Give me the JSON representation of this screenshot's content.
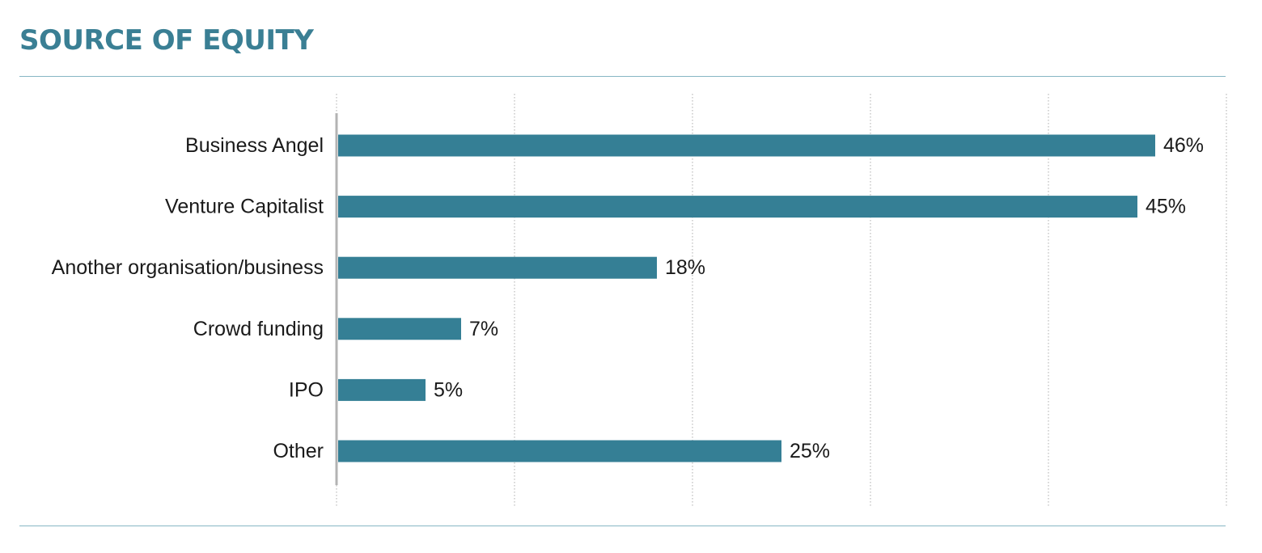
{
  "header": {
    "title": "SOURCE OF EQUITY"
  },
  "colors": {
    "title": "#3a7f94",
    "bar": "#357f95",
    "rule": "#87b6c4",
    "axis": "#b3b3b3",
    "grid": "#c8c8c8"
  },
  "chart_data": {
    "type": "bar",
    "orientation": "horizontal",
    "title": "SOURCE OF EQUITY",
    "xlabel": "",
    "ylabel": "",
    "categories": [
      "Business Angel",
      "Venture Capitalist",
      "Another organisation/business",
      "Crowd funding",
      "IPO",
      "Other"
    ],
    "values": [
      46,
      45,
      18,
      7,
      5,
      25
    ],
    "value_labels": [
      "46%",
      "45%",
      "18%",
      "7%",
      "5%",
      "25%"
    ],
    "xlim": [
      0,
      50
    ],
    "grid": true,
    "grid_style": "dotted vertical",
    "legend": "none"
  }
}
